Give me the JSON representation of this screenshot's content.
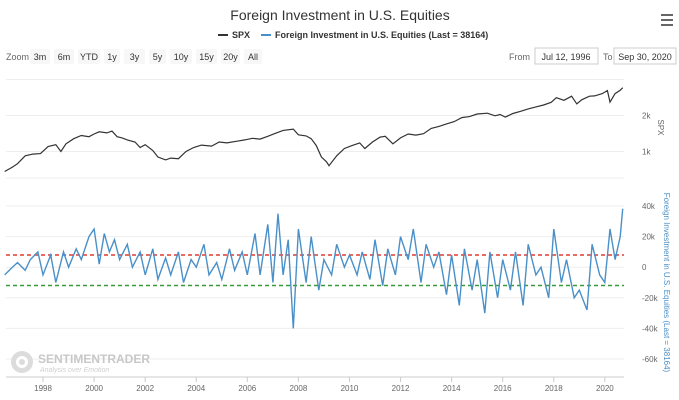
{
  "title": "Foreign Investment in U.S. Equities",
  "legend": [
    {
      "label": "SPX",
      "color": "#333333"
    },
    {
      "label": "Foreign Investment in U.S. Equities (Last = 38164)",
      "color": "#4a90c8"
    }
  ],
  "range_selector": {
    "zoom_label": "Zoom",
    "buttons": [
      "3m",
      "6m",
      "YTD",
      "1y",
      "3y",
      "5y",
      "10y",
      "15y",
      "20y",
      "All"
    ],
    "from_label": "From",
    "from_value": "Jul 12, 1996",
    "to_label": "To",
    "to_value": "Sep 30, 2020"
  },
  "menu_icon": "hamburger-menu-icon",
  "watermark": {
    "main": "SENTIMENTRADER",
    "sub": "Analysis over Emotion"
  },
  "chart_data": [
    {
      "type": "line",
      "name": "SPX",
      "x_range": [
        1996.55,
        2020.75
      ],
      "y_scale": "log",
      "ylim": [
        600,
        4200
      ],
      "ylabel": "SPX",
      "yticks": [
        1000,
        2000
      ],
      "ytick_labels": [
        "1k",
        "2k"
      ],
      "color": "#333333",
      "x": [
        1996.5,
        1996.8,
        1997.0,
        1997.3,
        1997.6,
        1997.9,
        1998.2,
        1998.5,
        1998.7,
        1998.9,
        1999.2,
        1999.5,
        1999.8,
        2000.0,
        2000.2,
        2000.5,
        2000.7,
        2000.9,
        2001.1,
        2001.3,
        2001.6,
        2001.8,
        2002.0,
        2002.3,
        2002.5,
        2002.8,
        2003.0,
        2003.3,
        2003.6,
        2003.9,
        2004.2,
        2004.6,
        2004.9,
        2005.2,
        2005.6,
        2005.9,
        2006.2,
        2006.5,
        2006.8,
        2007.1,
        2007.4,
        2007.8,
        2008.0,
        2008.3,
        2008.5,
        2008.7,
        2008.9,
        2009.1,
        2009.2,
        2009.5,
        2009.8,
        2010.1,
        2010.4,
        2010.6,
        2010.9,
        2011.2,
        2011.4,
        2011.7,
        2012.0,
        2012.3,
        2012.6,
        2012.9,
        2013.2,
        2013.5,
        2013.8,
        2014.1,
        2014.4,
        2014.7,
        2015.0,
        2015.4,
        2015.7,
        2015.9,
        2016.1,
        2016.4,
        2016.7,
        2017.0,
        2017.3,
        2017.6,
        2017.9,
        2018.1,
        2018.4,
        2018.7,
        2018.9,
        2019.1,
        2019.4,
        2019.6,
        2019.9,
        2020.1,
        2020.2,
        2020.4,
        2020.6,
        2020.7
      ],
      "y": [
        680,
        740,
        790,
        920,
        950,
        960,
        1100,
        1140,
        1000,
        1160,
        1280,
        1360,
        1330,
        1400,
        1460,
        1430,
        1480,
        1330,
        1300,
        1250,
        1200,
        1080,
        1140,
        1020,
        900,
        850,
        880,
        870,
        1000,
        1080,
        1130,
        1110,
        1200,
        1180,
        1220,
        1250,
        1290,
        1270,
        1340,
        1420,
        1500,
        1540,
        1380,
        1350,
        1280,
        1120,
        900,
        820,
        760,
        920,
        1060,
        1120,
        1180,
        1060,
        1200,
        1320,
        1340,
        1160,
        1300,
        1400,
        1370,
        1410,
        1560,
        1620,
        1700,
        1780,
        1920,
        1960,
        2060,
        2090,
        1990,
        2040,
        1940,
        2080,
        2170,
        2270,
        2360,
        2450,
        2580,
        2820,
        2680,
        2900,
        2500,
        2710,
        2900,
        2920,
        3050,
        3230,
        2590,
        3050,
        3250,
        3420
      ]
    },
    {
      "type": "line",
      "name": "Foreign Investment in U.S. Equities (Last = 38164)",
      "last_value": 38164,
      "x_range": [
        1996.55,
        2020.75
      ],
      "ylim": [
        -60000,
        40000
      ],
      "ylabel": "Foreign Investment in U.S. Equities (Last = 38164)",
      "yticks": [
        -60000,
        -40000,
        -20000,
        0,
        20000,
        40000
      ],
      "ytick_labels": [
        "-60k",
        "-40k",
        "-20k",
        "0",
        "20k",
        "40k"
      ],
      "color": "#4a90c8",
      "reference_lines": [
        {
          "value": 8000,
          "color": "#e03c31",
          "style": "dashed"
        },
        {
          "value": -12000,
          "color": "#3a9a3a",
          "style": "dashed"
        }
      ],
      "x": [
        1996.5,
        1996.8,
        1997.0,
        1997.3,
        1997.5,
        1997.8,
        1998.0,
        1998.3,
        1998.5,
        1998.8,
        1999.0,
        1999.3,
        1999.5,
        1999.8,
        2000.0,
        2000.2,
        2000.4,
        2000.6,
        2000.8,
        2001.0,
        2001.3,
        2001.5,
        2001.8,
        2002.0,
        2002.3,
        2002.5,
        2002.8,
        2003.0,
        2003.3,
        2003.5,
        2003.8,
        2004.0,
        2004.3,
        2004.5,
        2004.8,
        2005.0,
        2005.3,
        2005.5,
        2005.8,
        2006.0,
        2006.3,
        2006.5,
        2006.8,
        2007.0,
        2007.2,
        2007.4,
        2007.6,
        2007.8,
        2008.0,
        2008.3,
        2008.5,
        2008.8,
        2009.0,
        2009.3,
        2009.5,
        2009.8,
        2010.0,
        2010.3,
        2010.5,
        2010.8,
        2011.0,
        2011.3,
        2011.5,
        2011.8,
        2012.0,
        2012.3,
        2012.5,
        2012.8,
        2013.0,
        2013.3,
        2013.5,
        2013.8,
        2014.0,
        2014.3,
        2014.5,
        2014.8,
        2015.0,
        2015.3,
        2015.5,
        2015.8,
        2016.0,
        2016.3,
        2016.5,
        2016.8,
        2017.0,
        2017.3,
        2017.5,
        2017.8,
        2018.0,
        2018.3,
        2018.5,
        2018.8,
        2019.0,
        2019.3,
        2019.5,
        2019.8,
        2020.0,
        2020.2,
        2020.4,
        2020.6,
        2020.7
      ],
      "y": [
        -5000,
        0,
        3000,
        -2000,
        5000,
        10000,
        -5000,
        8000,
        -10000,
        10000,
        0,
        12000,
        5000,
        20000,
        25000,
        2000,
        22000,
        10000,
        18000,
        5000,
        15000,
        0,
        10000,
        -5000,
        12000,
        -8000,
        6000,
        -5000,
        10000,
        -10000,
        5000,
        0,
        15000,
        -5000,
        3000,
        -8000,
        12000,
        -2000,
        10000,
        -5000,
        22000,
        -5000,
        28000,
        -10000,
        35000,
        -5000,
        18000,
        -40000,
        25000,
        -10000,
        20000,
        -15000,
        5000,
        -5000,
        15000,
        0,
        8000,
        -5000,
        10000,
        -8000,
        18000,
        -12000,
        12000,
        -5000,
        20000,
        5000,
        25000,
        -10000,
        15000,
        0,
        10000,
        -18000,
        8000,
        -25000,
        12000,
        -15000,
        5000,
        -30000,
        10000,
        -20000,
        5000,
        -15000,
        10000,
        -25000,
        15000,
        -5000,
        0,
        -20000,
        25000,
        -10000,
        5000,
        -20000,
        -15000,
        -28000,
        15000,
        -5000,
        -10000,
        25000,
        5000,
        20000,
        38164
      ]
    }
  ],
  "x_axis": {
    "ticks": [
      1998,
      2000,
      2002,
      2004,
      2006,
      2008,
      2010,
      2012,
      2014,
      2016,
      2018,
      2020
    ],
    "tick_labels": [
      "1998",
      "2000",
      "2002",
      "2004",
      "2006",
      "2008",
      "2010",
      "2012",
      "2014",
      "2016",
      "2018",
      "2020"
    ]
  }
}
